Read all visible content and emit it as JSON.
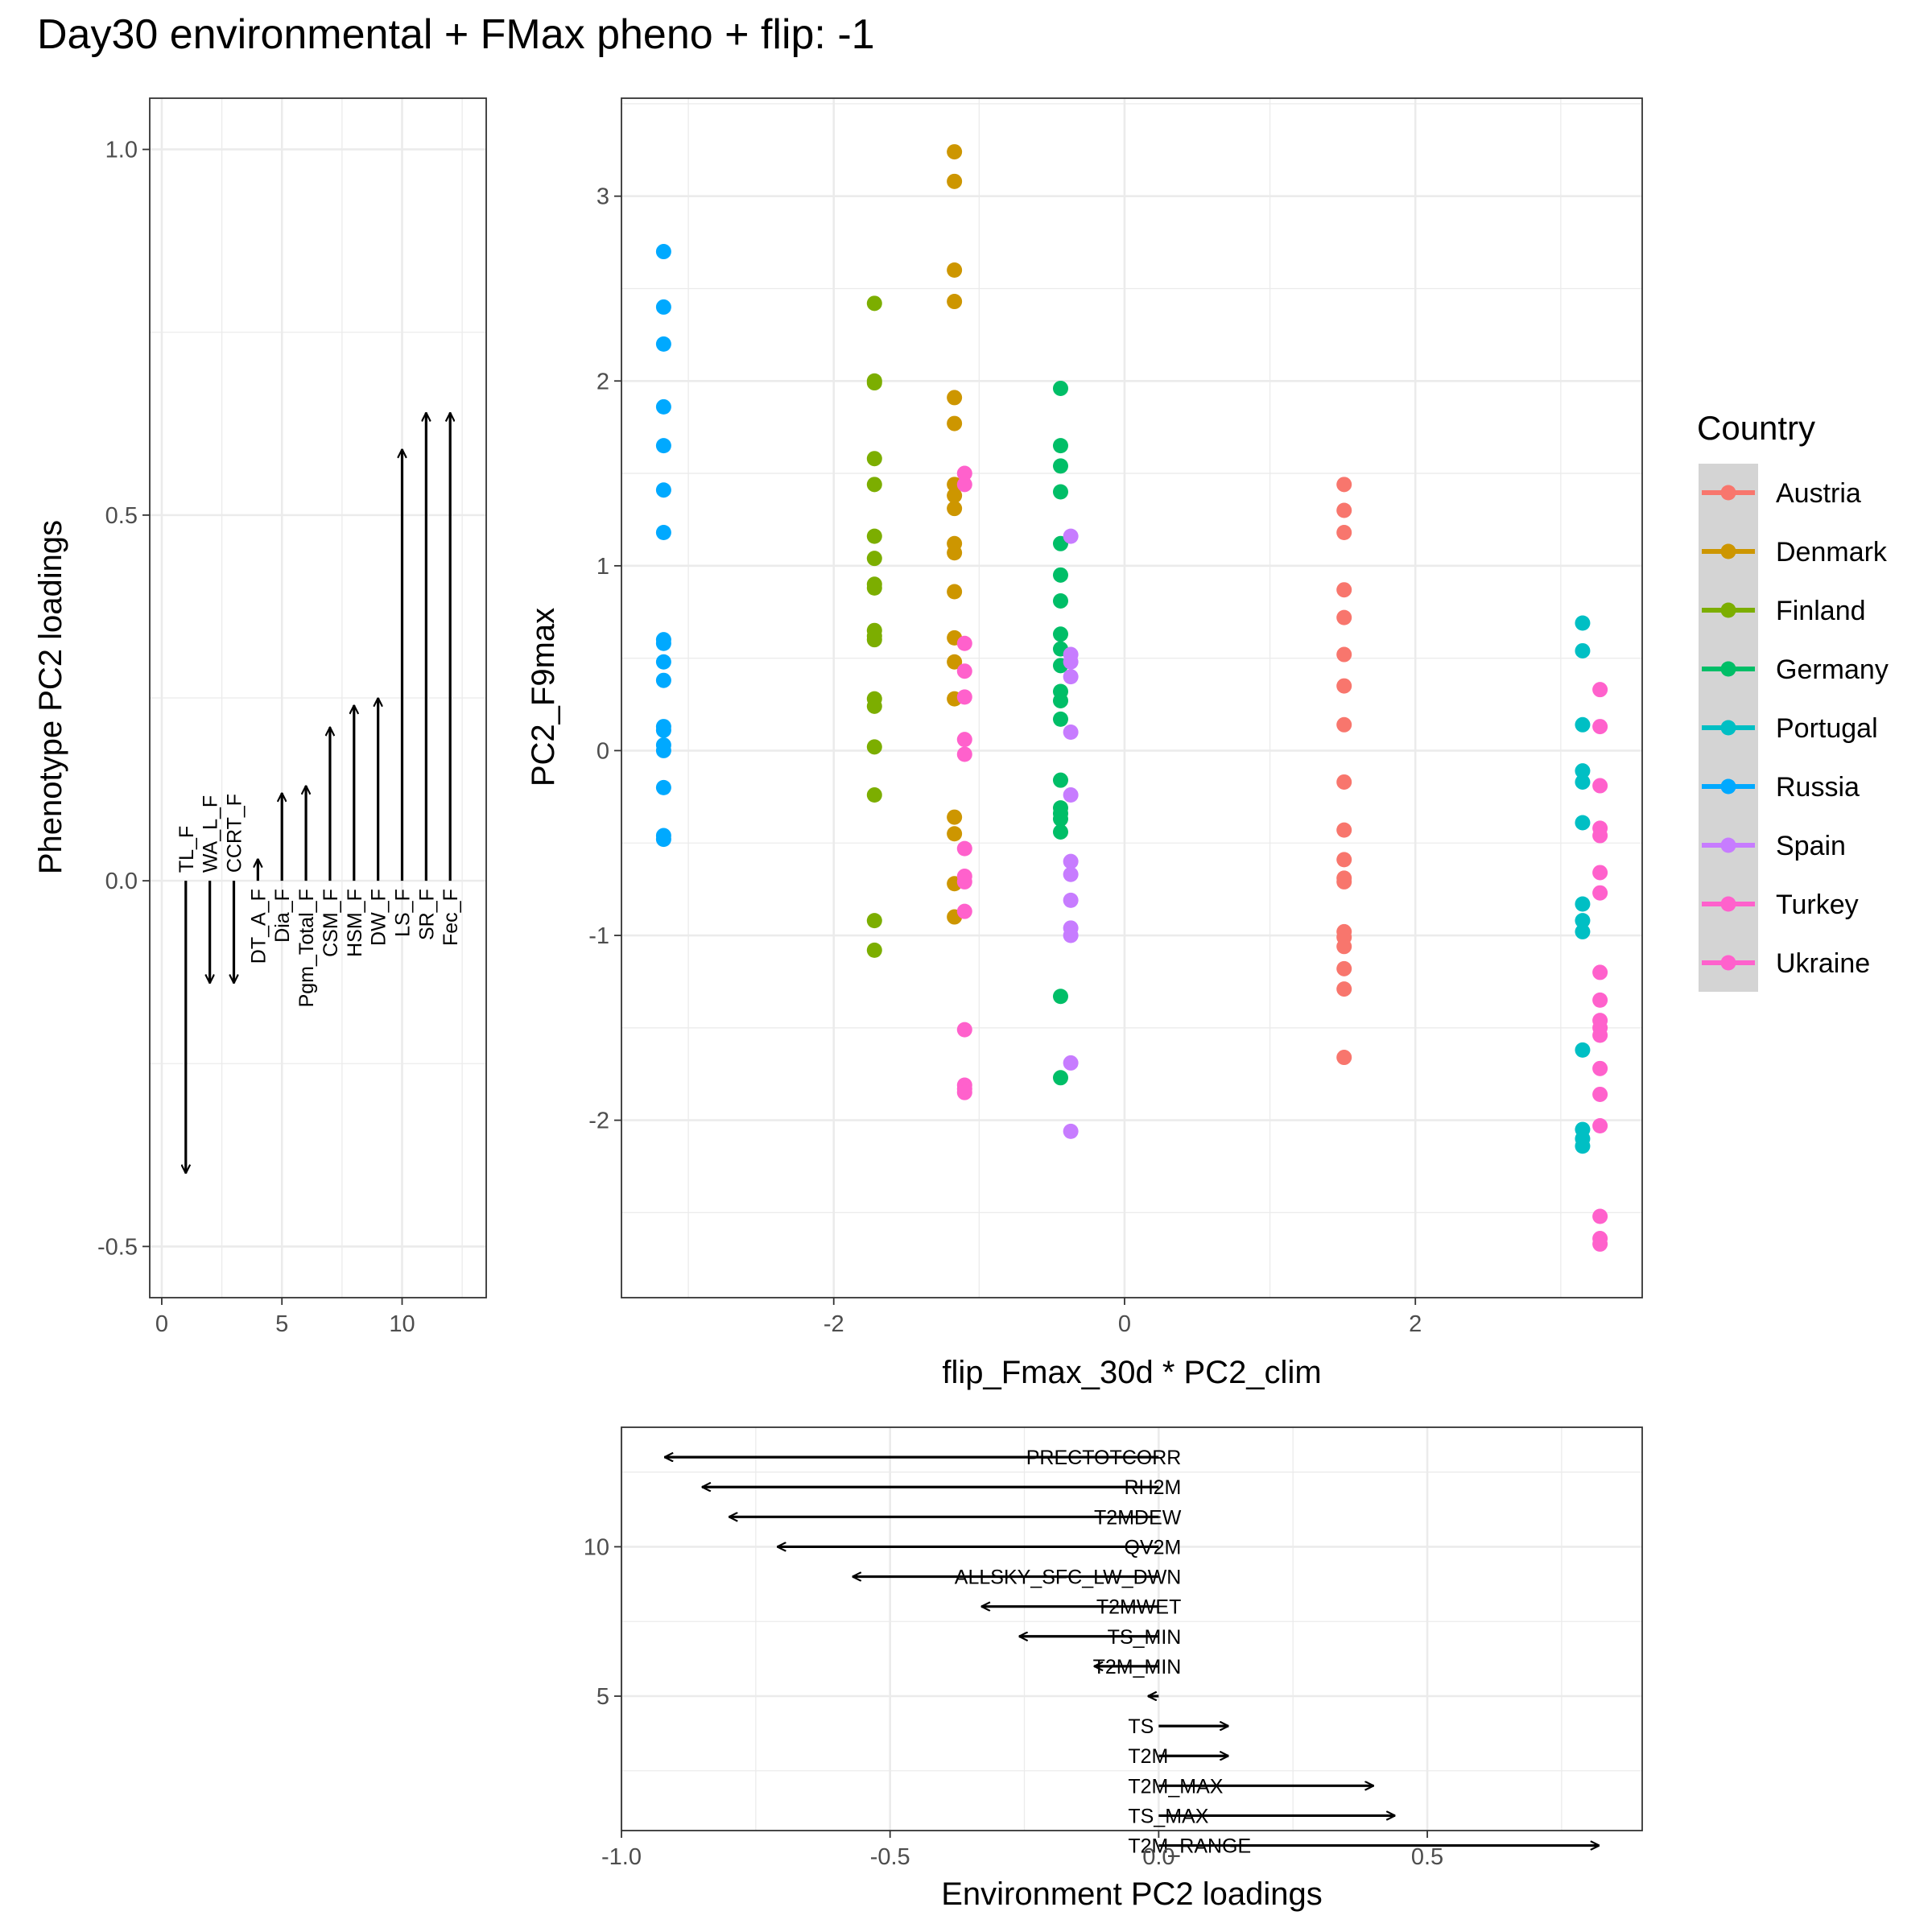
{
  "title": "Day30 environmental + FMax pheno + flip: -1",
  "colors": {
    "Austria": "#F8766D",
    "Denmark": "#CD9600",
    "Finland": "#7CAE00",
    "Germany": "#00BE67",
    "Portugal": "#00BFC4",
    "Russia": "#00A9FF",
    "Spain": "#C77CFF",
    "Turkey": "#FF61CC",
    "Ukraine": "#FF61CC"
  },
  "legend": {
    "title": "Country",
    "items": [
      "Austria",
      "Denmark",
      "Finland",
      "Germany",
      "Portugal",
      "Russia",
      "Spain",
      "Turkey",
      "Ukraine"
    ]
  },
  "chart_data": [
    {
      "type": "arrows",
      "ylabel": "Phenotype PC2 loadings",
      "xlim": [
        -0.5,
        13.5
      ],
      "ylim": [
        -0.57,
        1.07
      ],
      "x_ticks": [
        0,
        5,
        10
      ],
      "y_ticks": [
        -0.5,
        0.0,
        0.5,
        1.0
      ],
      "x_tick_labels": [
        "0",
        "5",
        "10"
      ],
      "y_tick_labels": [
        "-0.5",
        "0.0",
        "0.5",
        "1.0"
      ],
      "arrows": [
        {
          "label": "TL_F",
          "x": 1,
          "y": -0.4
        },
        {
          "label": "WA_L_F",
          "x": 2,
          "y": -0.14
        },
        {
          "label": "CCRT_F",
          "x": 3,
          "y": -0.14
        },
        {
          "label": "DT_A_F",
          "x": 4,
          "y": 0.03
        },
        {
          "label": "Dia_F",
          "x": 5,
          "y": 0.12
        },
        {
          "label": "Pgm_Total_F",
          "x": 6,
          "y": 0.13
        },
        {
          "label": "CSM_F",
          "x": 7,
          "y": 0.21
        },
        {
          "label": "HSM_F",
          "x": 8,
          "y": 0.24
        },
        {
          "label": "DW_F",
          "x": 9,
          "y": 0.25
        },
        {
          "label": "LS_F",
          "x": 10,
          "y": 0.59
        },
        {
          "label": "SR_F",
          "x": 11,
          "y": 0.64
        },
        {
          "label": "Fec_F",
          "x": 12,
          "y": 0.64
        }
      ]
    },
    {
      "type": "scatter",
      "xlabel": "flip_Fmax_30d * PC2_clim",
      "ylabel": "PC2_F9max",
      "xlim": [
        -3.46,
        3.56
      ],
      "ylim": [
        -2.96,
        3.53
      ],
      "x_ticks": [
        -2,
        0,
        2
      ],
      "y_ticks": [
        -2,
        -1,
        0,
        1,
        2,
        3
      ],
      "x_tick_labels": [
        "-2",
        "0",
        "2"
      ],
      "y_tick_labels": [
        "-2",
        "-1",
        "0",
        "1",
        "2",
        "3"
      ],
      "series": [
        {
          "name": "Russia",
          "x": -3.17,
          "y": [
            2.7,
            2.4,
            2.2,
            1.86,
            1.65,
            1.41,
            1.18,
            0.6,
            0.58,
            0.48,
            0.38,
            0.13,
            0.11,
            0.03,
            0.0,
            -0.2,
            -0.46,
            -0.48
          ]
        },
        {
          "name": "Finland",
          "x": -1.72,
          "y": [
            2.42,
            2.0,
            1.99,
            1.58,
            1.44,
            1.16,
            1.04,
            0.9,
            0.88,
            0.65,
            0.62,
            0.6,
            0.28,
            0.24,
            0.02,
            -0.24,
            -0.92,
            -1.08
          ]
        },
        {
          "name": "Denmark",
          "x": -1.17,
          "y": [
            3.24,
            3.08,
            2.6,
            2.43,
            1.91,
            1.77,
            1.44,
            1.38,
            1.31,
            1.12,
            1.07,
            0.86,
            0.61,
            0.48,
            0.28,
            -0.36,
            -0.45,
            -0.72,
            -0.9
          ]
        },
        {
          "name": "Ukraine",
          "x": -1.1,
          "y": [
            1.5,
            1.44,
            0.58,
            0.43,
            0.29,
            0.06,
            -0.02,
            -0.53,
            -0.68,
            -0.71,
            -0.87,
            -1.51,
            -1.81,
            -1.83,
            -1.85
          ]
        },
        {
          "name": "Germany",
          "x": -0.44,
          "y": [
            1.96,
            1.65,
            1.54,
            1.4,
            1.12,
            0.95,
            0.81,
            0.63,
            0.55,
            0.46,
            0.32,
            0.27,
            0.17,
            -0.16,
            -0.31,
            -0.34,
            -0.37,
            -0.44,
            -1.33,
            -1.77
          ]
        },
        {
          "name": "Spain",
          "x": -0.37,
          "y": [
            1.16,
            0.52,
            0.48,
            0.4,
            0.1,
            -0.24,
            -0.6,
            -0.67,
            -0.81,
            -0.96,
            -1.0,
            -1.69,
            -2.06
          ]
        },
        {
          "name": "Austria",
          "x": 1.51,
          "y": [
            1.44,
            1.3,
            1.18,
            0.87,
            0.72,
            0.52,
            0.35,
            0.14,
            -0.17,
            -0.43,
            -0.59,
            -0.69,
            -0.71,
            -0.98,
            -1.01,
            -1.06,
            -1.18,
            -1.29,
            -1.66
          ]
        },
        {
          "name": "Portugal",
          "x": 3.15,
          "y": [
            0.69,
            0.54,
            0.14,
            -0.11,
            -0.17,
            -0.39,
            -0.83,
            -0.92,
            -0.98,
            -1.62,
            -2.05,
            -2.1,
            -2.14
          ]
        },
        {
          "name": "Turkey",
          "x": 3.27,
          "y": [
            0.33,
            0.13,
            -0.19,
            -0.42,
            -0.46,
            -0.66,
            -0.77,
            -1.2,
            -1.35,
            -1.46,
            -1.5,
            -1.54,
            -1.72,
            -1.86,
            -2.03,
            -2.52,
            -2.64,
            -2.67
          ]
        }
      ]
    },
    {
      "type": "arrows",
      "xlabel": "Environment PC2 loadings",
      "xlim": [
        -1.0,
        0.9
      ],
      "ylim": [
        0.5,
        14.0
      ],
      "x_ticks": [
        -1.0,
        -0.5,
        0.0,
        0.5
      ],
      "y_ticks": [
        5,
        10
      ],
      "x_tick_labels": [
        "-1.0",
        "-0.5",
        "0.0",
        "0.5"
      ],
      "y_tick_labels": [
        "5",
        "10"
      ],
      "arrows": [
        {
          "label": "PRECTOTCORR",
          "y": 13,
          "x": -0.92
        },
        {
          "label": "RH2M",
          "y": 12,
          "x": -0.85
        },
        {
          "label": "T2MDEW",
          "y": 11,
          "x": -0.8
        },
        {
          "label": "QV2M",
          "y": 10,
          "x": -0.71
        },
        {
          "label": "ALLSKY_SFC_LW_DWN",
          "y": 9,
          "x": -0.57
        },
        {
          "label": "T2MWET",
          "y": 8,
          "x": -0.33
        },
        {
          "label": "TS_MIN",
          "y": 7,
          "x": -0.26
        },
        {
          "label": "T2M_MIN",
          "y": 6,
          "x": -0.12
        },
        {
          "label": "",
          "y": 5,
          "x": -0.02
        },
        {
          "label": "TS",
          "y": 4,
          "x": 0.13
        },
        {
          "label": "T2M",
          "y": 3,
          "x": 0.13
        },
        {
          "label": "T2M_MAX",
          "y": 2,
          "x": 0.4
        },
        {
          "label": "TS_MAX",
          "y": 1,
          "x": 0.44
        },
        {
          "label": "T2M_RANGE",
          "y": 0,
          "x": 0.82
        }
      ]
    }
  ]
}
